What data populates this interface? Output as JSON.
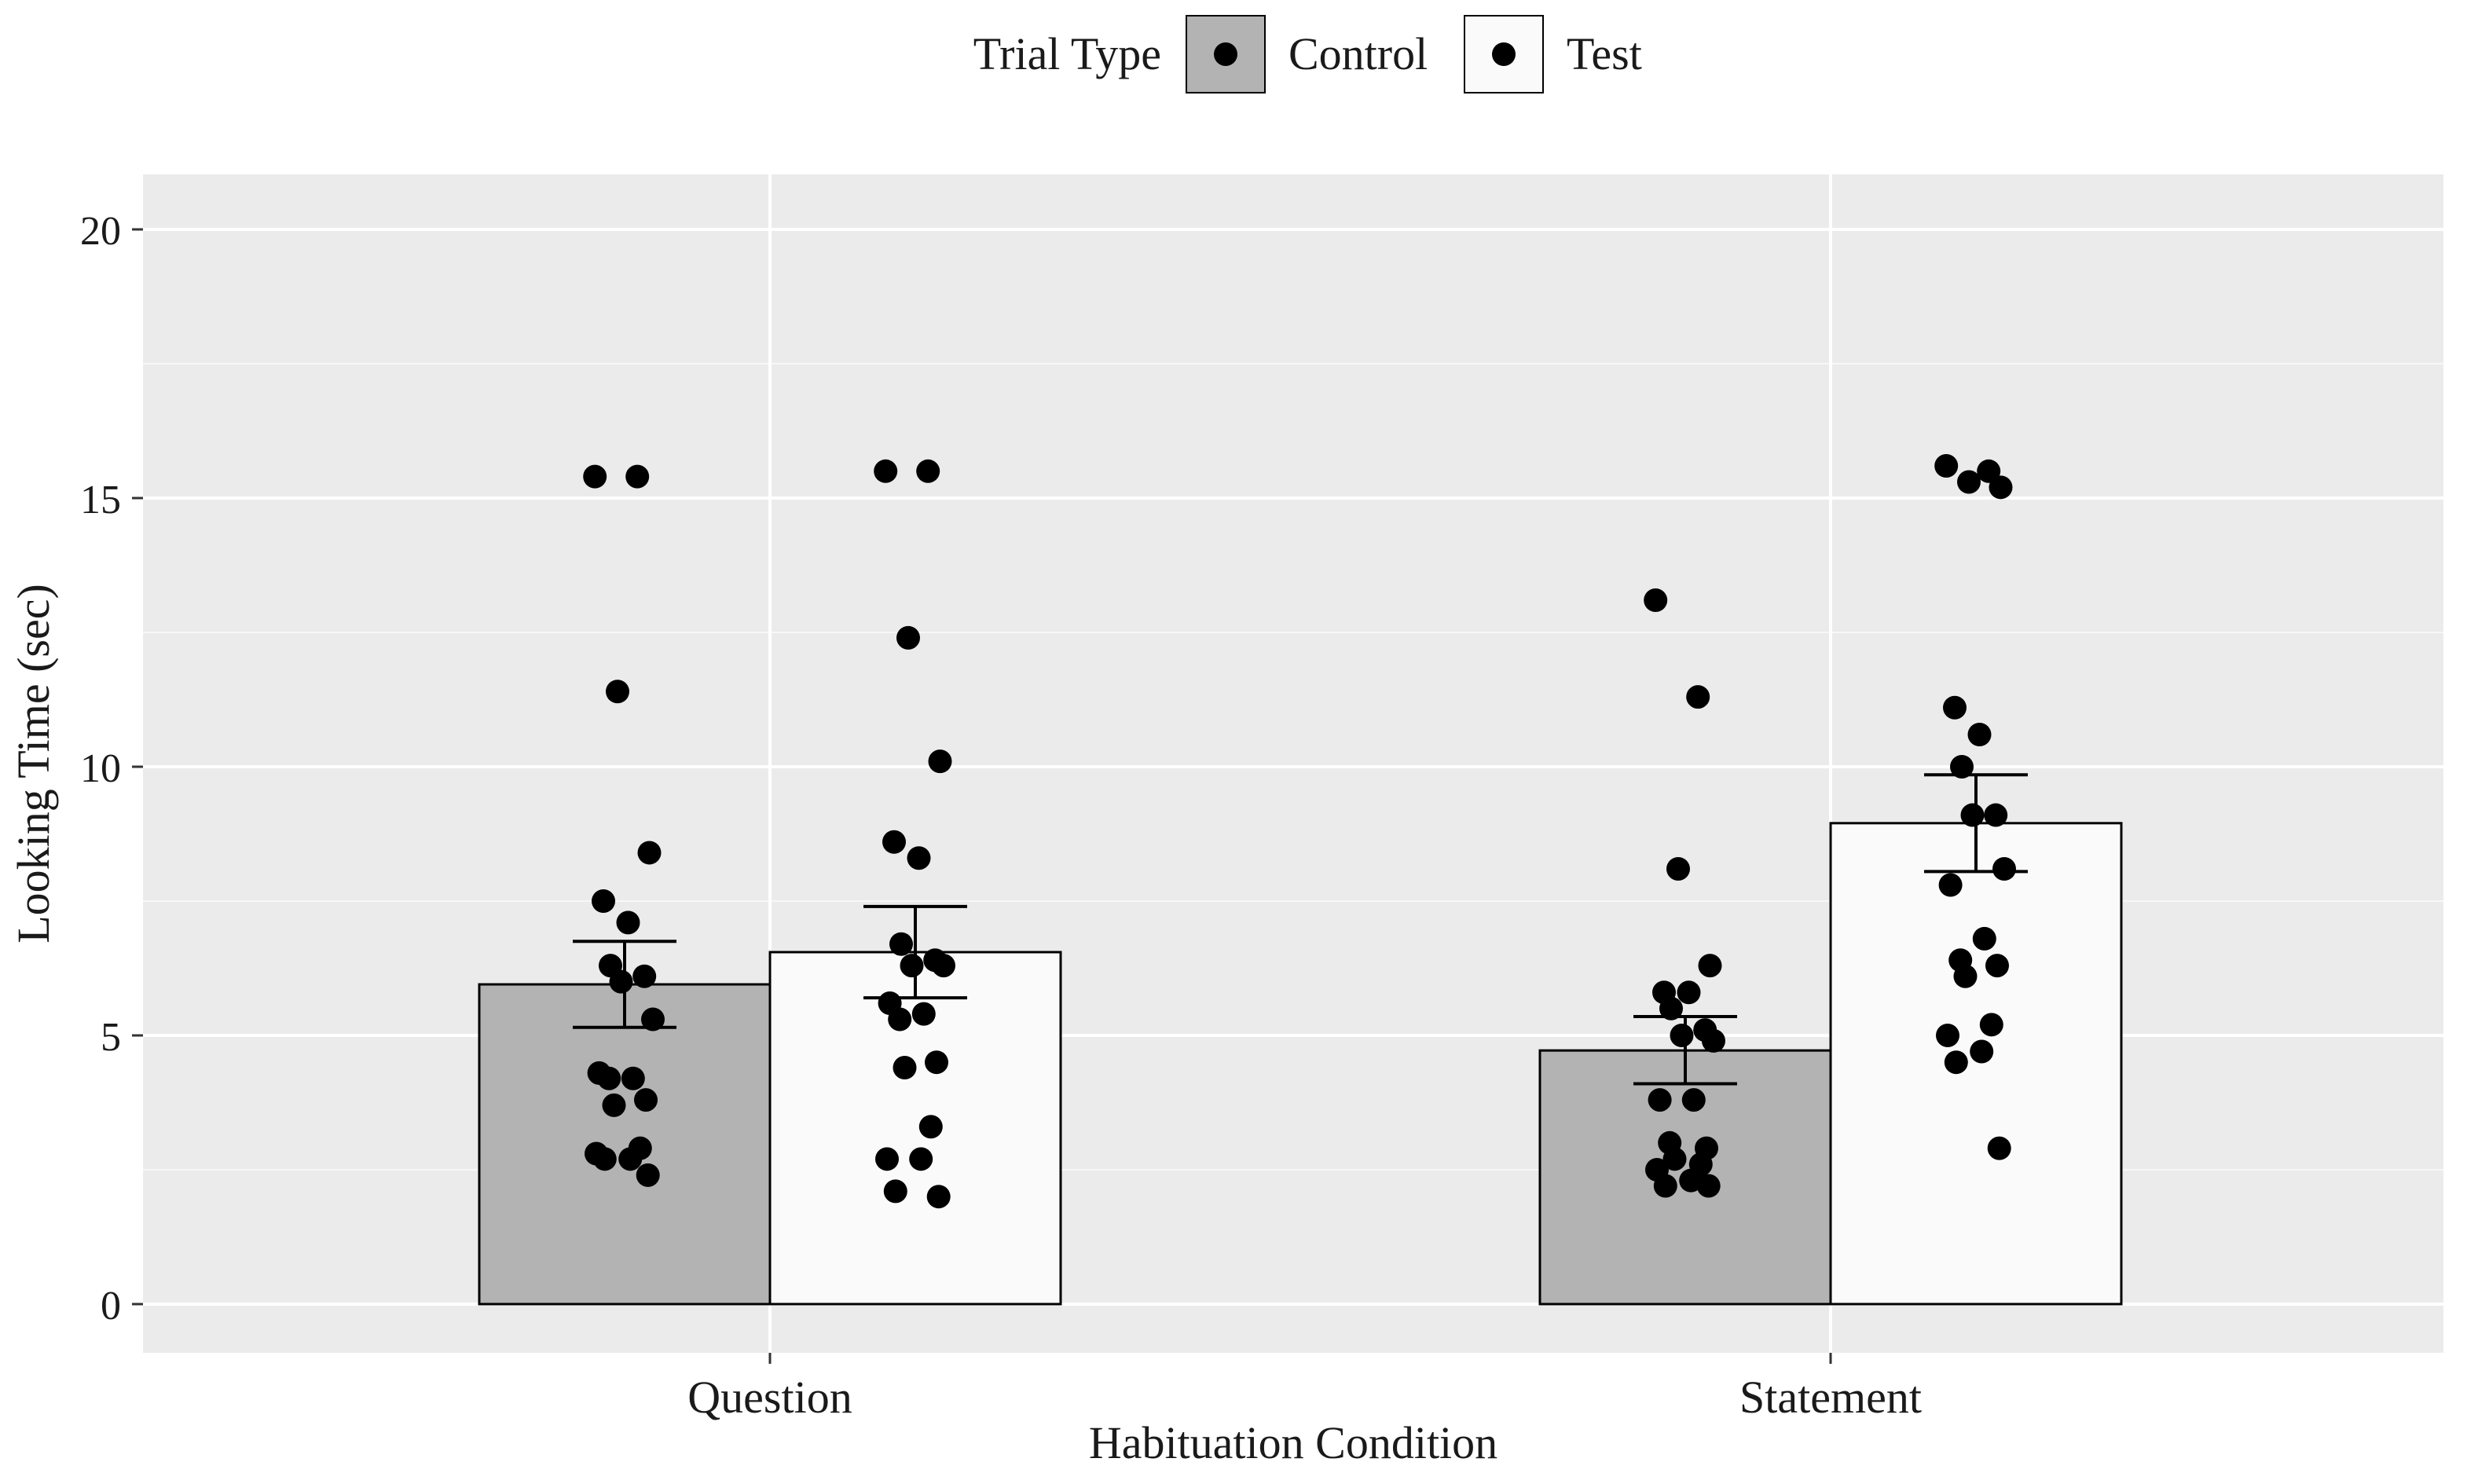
{
  "chart_data": {
    "type": "bar",
    "title": "",
    "xlabel": "Habituation Condition",
    "ylabel": "Looking Time (sec)",
    "ylim": [
      -1,
      21
    ],
    "yticks": [
      0,
      5,
      10,
      15,
      20
    ],
    "grid": true,
    "legend": {
      "title": "Trial Type",
      "position": "top",
      "entries": [
        {
          "name": "Control",
          "fill": "#b3b3b3"
        },
        {
          "name": "Test",
          "fill": "#fafafa"
        }
      ]
    },
    "categories": [
      "Question",
      "Statement"
    ],
    "series": [
      {
        "name": "Control",
        "fill": "#b3b3b3",
        "values": [
          5.95,
          4.72
        ],
        "error_low": [
          5.15,
          4.1
        ],
        "error_high": [
          6.75,
          5.35
        ],
        "points": [
          [
            15.4,
            15.4,
            11.4,
            8.4,
            7.5,
            7.1,
            6.3,
            6.1,
            6.0,
            5.3,
            4.3,
            4.2,
            4.2,
            3.8,
            3.7,
            2.9,
            2.8,
            2.7,
            2.7,
            2.4
          ],
          [
            13.1,
            11.3,
            8.1,
            6.3,
            5.8,
            5.8,
            5.5,
            5.1,
            5.0,
            4.9,
            3.8,
            3.8,
            3.0,
            2.9,
            2.7,
            2.6,
            2.5,
            2.3,
            2.2,
            2.2
          ]
        ]
      },
      {
        "name": "Test",
        "fill": "#fafafa",
        "values": [
          6.55,
          8.95
        ],
        "error_low": [
          5.7,
          8.05
        ],
        "error_high": [
          7.4,
          9.85
        ],
        "points": [
          [
            15.5,
            15.5,
            12.4,
            10.1,
            8.6,
            8.3,
            6.7,
            6.4,
            6.3,
            6.3,
            5.6,
            5.4,
            5.3,
            4.5,
            4.4,
            3.3,
            2.7,
            2.7,
            2.1,
            2.0
          ],
          [
            15.6,
            15.5,
            15.3,
            15.2,
            11.1,
            10.6,
            10.0,
            9.1,
            9.1,
            8.1,
            7.8,
            6.8,
            6.4,
            6.3,
            6.1,
            5.2,
            5.0,
            4.7,
            4.5,
            2.9
          ]
        ]
      }
    ]
  },
  "colors": {
    "panel_background": "#ebebeb",
    "grid_line": "#ffffff",
    "bar_outline": "#000000",
    "point": "#000000"
  }
}
